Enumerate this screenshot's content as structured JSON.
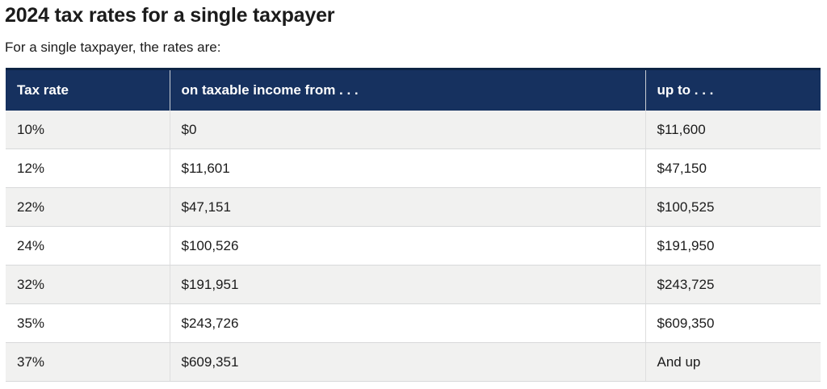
{
  "page": {
    "title": "2024 tax rates for a single taxpayer",
    "subtitle": "For a single taxpayer, the rates are:"
  },
  "table": {
    "columns": [
      "Tax rate",
      "on taxable income from . . .",
      "up to . . ."
    ],
    "rows": [
      {
        "rate": "10%",
        "from": "$0",
        "up_to": "$11,600"
      },
      {
        "rate": "12%",
        "from": "$11,601",
        "up_to": "$47,150"
      },
      {
        "rate": "22%",
        "from": "$47,151",
        "up_to": "$100,525"
      },
      {
        "rate": "24%",
        "from": "$100,526",
        "up_to": "$191,950"
      },
      {
        "rate": "32%",
        "from": "$191,951",
        "up_to": "$243,725"
      },
      {
        "rate": "35%",
        "from": "$243,726",
        "up_to": "$609,350"
      },
      {
        "rate": "37%",
        "from": "$609,351",
        "up_to": "And up"
      }
    ]
  },
  "colors": {
    "header_bg": "#16315f",
    "header_top_border": "#0d2444",
    "header_text": "#ffffff",
    "row_alt_bg": "#f1f1f0",
    "row_bg": "#ffffff",
    "row_border": "#d8d9da",
    "text": "#1b1b1b"
  }
}
